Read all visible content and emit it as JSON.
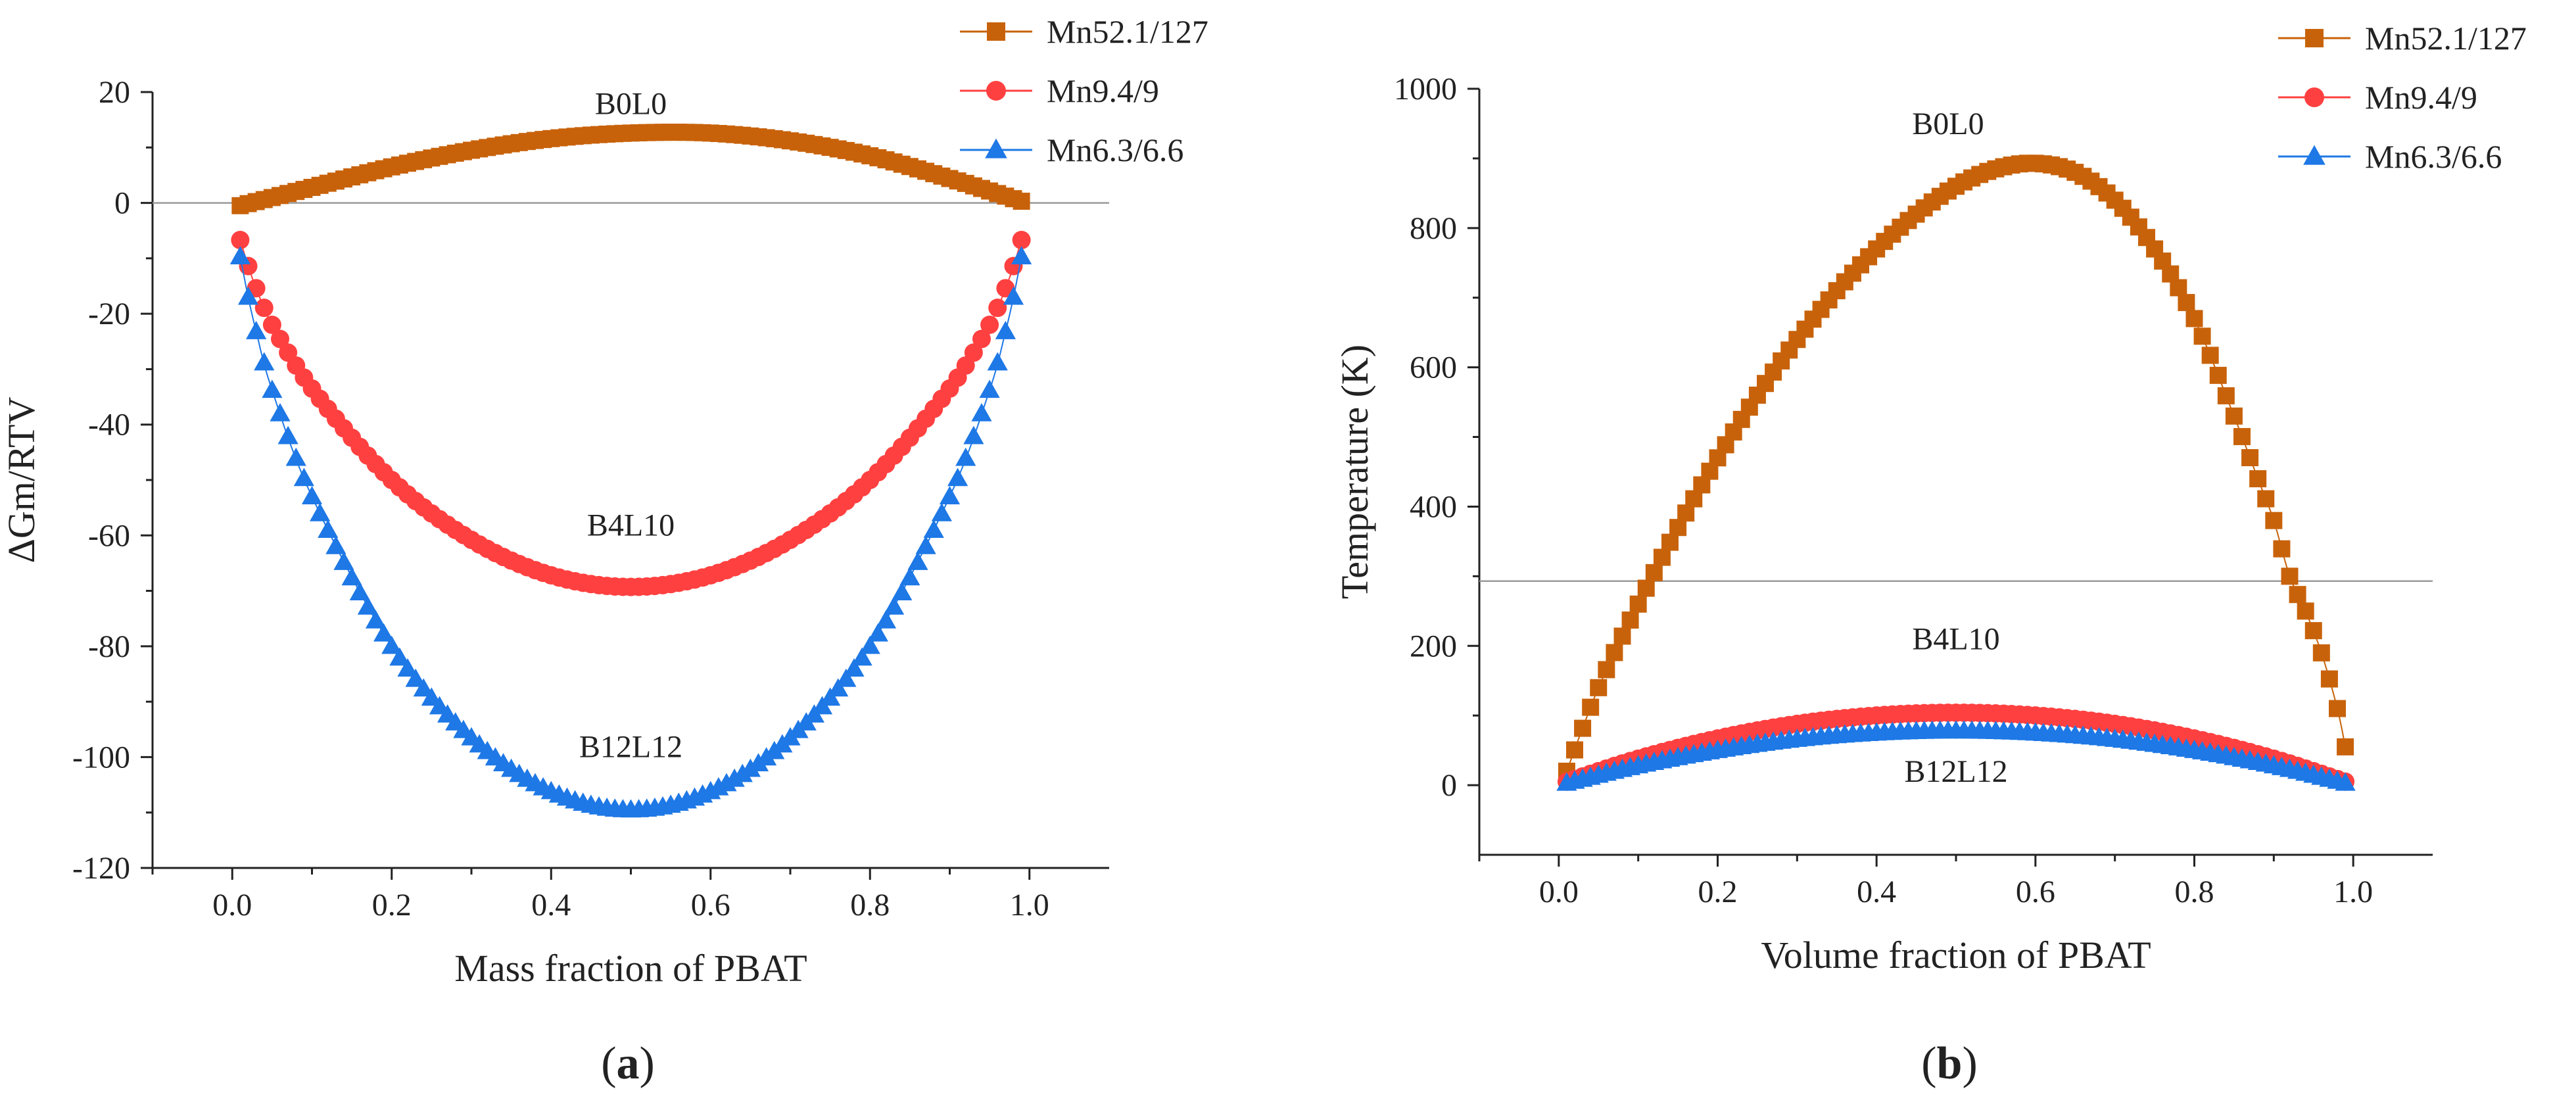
{
  "colors": {
    "Mn52.1/127": "#c8620a",
    "Mn9.4/9": "#ff4040",
    "Mn6.3/6.6": "#1e78e6",
    "axis": "#222222",
    "reference_line": "#9a9a9a"
  },
  "chart_data": [
    {
      "panel": "a",
      "type": "scatter",
      "xlabel": "Mass fraction of PBAT",
      "ylabel": "ΔGm/RTV",
      "xlim": [
        -0.1,
        1.1
      ],
      "ylim": [
        -120,
        20
      ],
      "xticks": [
        "0.0",
        "0.2",
        "0.4",
        "0.6",
        "0.8",
        "1.0"
      ],
      "yticks": [
        "20",
        "0",
        "-20",
        "-40",
        "-60",
        "-80",
        "-100",
        "-120"
      ],
      "reference_line_y": 0,
      "legend": {
        "position": "top-right",
        "entries": [
          "Mn52.1/127",
          "Mn9.4/9",
          "Mn6.3/6.6"
        ]
      },
      "annotations": [
        {
          "text": "B0L0",
          "x": 0.5,
          "y": 16
        },
        {
          "text": "B4L10",
          "x": 0.5,
          "y": -60
        },
        {
          "text": "B12L12",
          "x": 0.5,
          "y": -100
        }
      ],
      "series": [
        {
          "name": "Mn52.1/127",
          "marker": "square",
          "x": [
            0.01,
            0.1,
            0.2,
            0.3,
            0.4,
            0.5,
            0.6,
            0.7,
            0.8,
            0.9,
            0.99
          ],
          "y": [
            -0.5,
            2.8,
            6.5,
            9.5,
            11.6,
            12.6,
            12.6,
            11.2,
            8.5,
            4.4,
            0.3
          ]
        },
        {
          "name": "Mn9.4/9",
          "marker": "circle",
          "x": [
            0.01,
            0.02,
            0.03,
            0.05,
            0.1,
            0.2,
            0.3,
            0.4,
            0.5,
            0.6,
            0.7,
            0.8,
            0.9,
            0.95,
            0.97,
            0.98,
            0.99
          ],
          "y": [
            -6.7,
            -11.4,
            -15.4,
            -22.0,
            -33.5,
            -50.0,
            -60.8,
            -67.2,
            -69.3,
            -67.2,
            -60.8,
            -50.0,
            -33.5,
            -22.0,
            -15.4,
            -11.4,
            -6.7
          ]
        },
        {
          "name": "Mn6.3/6.6",
          "marker": "triangle",
          "x": [
            0.01,
            0.02,
            0.03,
            0.05,
            0.1,
            0.2,
            0.3,
            0.4,
            0.5,
            0.6,
            0.7,
            0.8,
            0.9,
            0.95,
            0.97,
            0.98,
            0.99
          ],
          "y": [
            -9.7,
            -17.0,
            -23.2,
            -33.8,
            -53.0,
            -80.0,
            -96.5,
            -106.2,
            -109.5,
            -106.2,
            -96.5,
            -80.0,
            -53.0,
            -33.8,
            -23.2,
            -17.0,
            -9.7
          ]
        }
      ]
    },
    {
      "panel": "b",
      "type": "scatter",
      "xlabel": "Volume fraction of PBAT",
      "ylabel": "Temperature (K)",
      "xlim": [
        -0.1,
        1.1
      ],
      "ylim": [
        -100,
        1000
      ],
      "xticks": [
        "0.0",
        "0.2",
        "0.4",
        "0.6",
        "0.8",
        "1.0"
      ],
      "yticks": [
        "1000",
        "800",
        "600",
        "400",
        "200",
        "0"
      ],
      "reference_line_y": 293,
      "legend": {
        "position": "top-right",
        "entries": [
          "Mn52.1/127",
          "Mn9.4/9",
          "Mn6.3/6.6"
        ]
      },
      "annotations": [
        {
          "text": "B0L0",
          "x": 0.49,
          "y": 935
        },
        {
          "text": "B4L10",
          "x": 0.5,
          "y": 195
        },
        {
          "text": "B12L12",
          "x": 0.5,
          "y": 5
        }
      ],
      "series": [
        {
          "name": "Mn52.1/127",
          "marker": "square",
          "x": [
            0.01,
            0.05,
            0.1,
            0.15,
            0.2,
            0.25,
            0.3,
            0.35,
            0.4,
            0.45,
            0.5,
            0.55,
            0.6,
            0.65,
            0.7,
            0.75,
            0.8,
            0.85,
            0.88,
            0.9,
            0.92,
            0.94,
            0.96,
            0.98,
            0.99
          ],
          "y": [
            20,
            140,
            260,
            370,
            470,
            560,
            640,
            710,
            770,
            820,
            860,
            885,
            893,
            880,
            840,
            770,
            670,
            530,
            440,
            380,
            300,
            250,
            190,
            110,
            55
          ]
        },
        {
          "name": "Mn9.4/9",
          "marker": "circle",
          "x": [
            0.01,
            0.1,
            0.2,
            0.3,
            0.4,
            0.5,
            0.6,
            0.7,
            0.8,
            0.9,
            0.99
          ],
          "y": [
            5,
            38,
            67,
            88,
            100,
            104,
            100,
            88,
            67,
            38,
            5
          ]
        },
        {
          "name": "Mn6.3/6.6",
          "marker": "triangle",
          "x": [
            0.01,
            0.1,
            0.2,
            0.3,
            0.4,
            0.5,
            0.6,
            0.7,
            0.8,
            0.9,
            0.99
          ],
          "y": [
            3,
            28,
            50,
            66,
            75,
            78,
            75,
            66,
            50,
            28,
            3
          ]
        }
      ]
    }
  ],
  "panel_labels": {
    "a": {
      "open": "(",
      "letter": "a",
      "close": ")"
    },
    "b": {
      "open": "(",
      "letter": "b",
      "close": ")"
    }
  }
}
